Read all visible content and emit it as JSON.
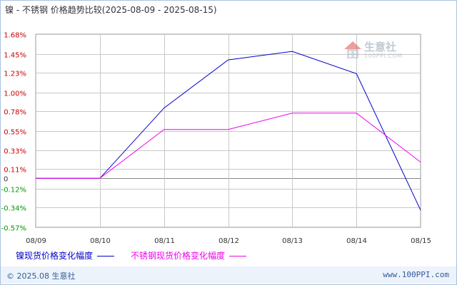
{
  "chart_data": {
    "type": "line",
    "title": "镍 - 不锈钢 价格趋势比较(2025-08-09 - 2025-08-15)",
    "x": [
      "08/09",
      "08/10",
      "08/11",
      "08/12",
      "08/13",
      "08/14",
      "08/15"
    ],
    "series": [
      {
        "name": "镍现货价格变化幅度",
        "color": "#0000cc",
        "values": [
          0,
          0,
          0.82,
          1.38,
          1.48,
          1.22,
          -0.37
        ]
      },
      {
        "name": "不锈钢现货价格变化幅度",
        "color": "#ee00ee",
        "values": [
          0,
          0,
          0.57,
          0.57,
          0.76,
          0.76,
          0.19
        ]
      }
    ],
    "yticks": [
      {
        "label": "1.68%",
        "value": 1.68
      },
      {
        "label": "1.45%",
        "value": 1.45
      },
      {
        "label": "1.23%",
        "value": 1.23
      },
      {
        "label": "1.00%",
        "value": 1.0
      },
      {
        "label": "0.78%",
        "value": 0.78
      },
      {
        "label": "0.55%",
        "value": 0.55
      },
      {
        "label": "0.33%",
        "value": 0.33
      },
      {
        "label": "0.11%",
        "value": 0.11
      },
      {
        "label": "0",
        "value": 0
      },
      {
        "label": "-0.12%",
        "value": -0.12
      },
      {
        "label": "-0.34%",
        "value": -0.34
      },
      {
        "label": "-0.57%",
        "value": -0.57
      }
    ],
    "ylim": [
      -0.57,
      1.68
    ],
    "grid": true,
    "legend_position": "bottom-left"
  },
  "colors": {
    "positive_tick": "#cc0000",
    "negative_tick": "#009900",
    "zero_tick": "#333333",
    "grid": "#c8c8c8",
    "frame": "#a9c2dc",
    "footer_bg": "#ecf3fb"
  },
  "watermark": {
    "brand": "生意社",
    "site": "100PPI.COM"
  },
  "footer": {
    "copyright": "© 2025.08 生意社",
    "site": "www.100PPI.com"
  }
}
